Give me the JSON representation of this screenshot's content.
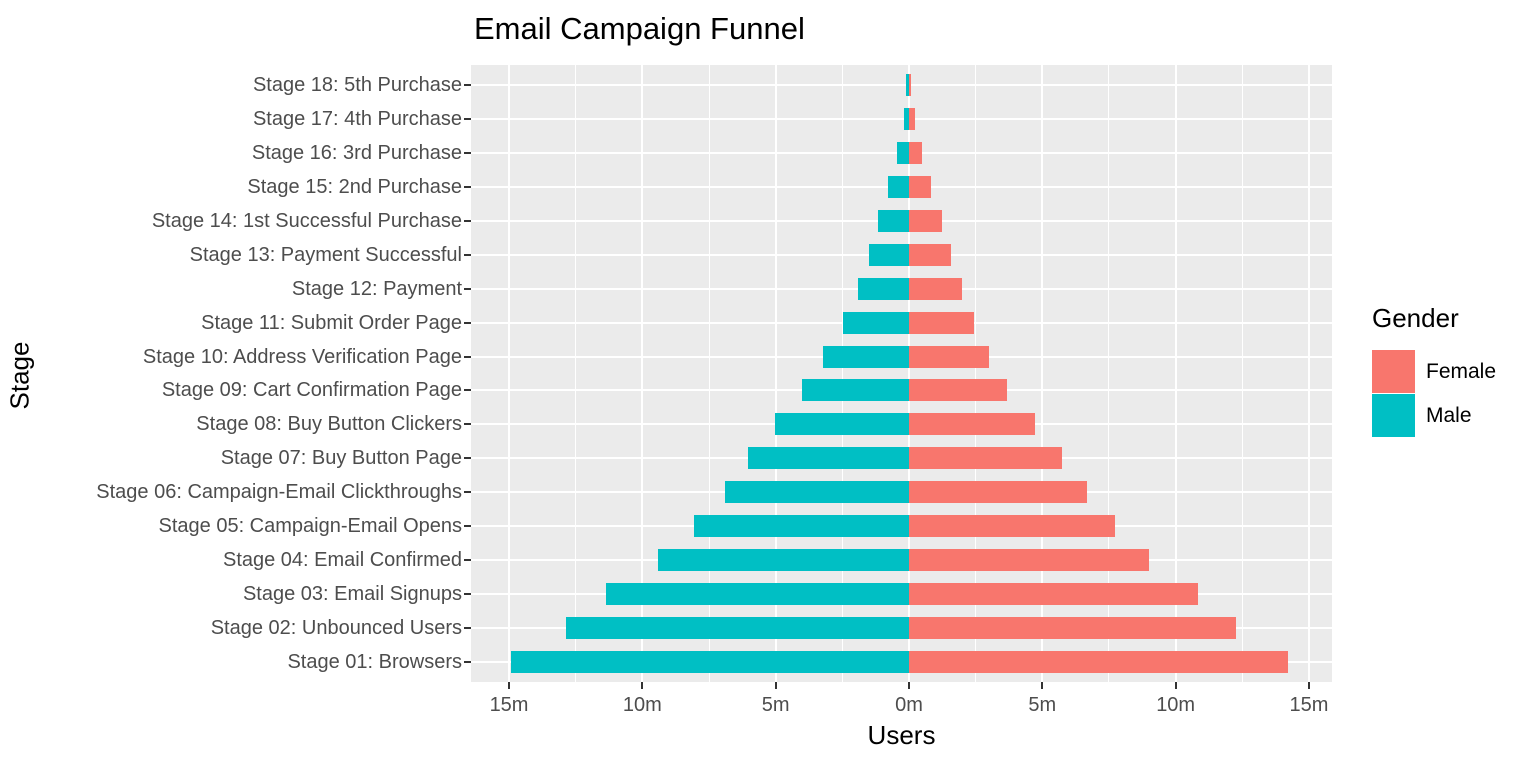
{
  "title": "Email Campaign Funnel",
  "x_axis": {
    "label": "Users",
    "ticks": [
      "15m",
      "10m",
      "5m",
      "0m",
      "5m",
      "10m",
      "15m"
    ],
    "tick_values_m": [
      -15,
      -10,
      -5,
      0,
      5,
      10,
      15
    ]
  },
  "y_axis": {
    "label": "Stage"
  },
  "legend": {
    "title": "Gender",
    "items": [
      {
        "label": "Female",
        "color": "#F8766D"
      },
      {
        "label": "Male",
        "color": "#00BFC4"
      }
    ]
  },
  "colors": {
    "female": "#F8766D",
    "male": "#00BFC4",
    "panel_background": "#EBEBEB",
    "gridline": "#FFFFFF",
    "axis_text": "#4D4D4D",
    "tick_mark": "#333333",
    "title_text": "#000000"
  },
  "chart_data": {
    "type": "bar",
    "subtype": "population-pyramid-funnel",
    "title": "Email Campaign Funnel",
    "xlabel": "Users",
    "ylabel": "Stage",
    "unit": "millions of users",
    "orientation": "horizontal, diverging from zero; Male plotted left (negative), Female plotted right (positive)",
    "axis_range_m": [
      -16.4,
      15.9
    ],
    "grid": "white major/minor gridlines on gray panel",
    "legend_position": "right",
    "categories": [
      "Stage 18: 5th Purchase",
      "Stage 17: 4th Purchase",
      "Stage 16: 3rd Purchase",
      "Stage 15: 2nd Purchase",
      "Stage 14: 1st Successful Purchase",
      "Stage 13: Payment Successful",
      "Stage 12: Payment",
      "Stage 11: Submit Order Page",
      "Stage 10: Address Verification Page",
      "Stage 09: Cart Confirmation Page",
      "Stage 08: Buy Button Clickers",
      "Stage 07: Buy Button Page",
      "Stage 06: Campaign-Email Clickthroughs",
      "Stage 05: Campaign-Email Opens",
      "Stage 04: Email Confirmed",
      "Stage 03: Email Signups",
      "Stage 02: Unbounced Users",
      "Stage 01: Browsers"
    ],
    "series": [
      {
        "name": "Male",
        "color": "#00BFC4",
        "side": "left",
        "values_m": [
          0.1,
          0.19,
          0.44,
          0.78,
          1.15,
          1.49,
          1.9,
          2.46,
          3.21,
          4.0,
          5.02,
          6.03,
          6.9,
          8.06,
          9.4,
          11.36,
          12.86,
          14.93
        ]
      },
      {
        "name": "Female",
        "color": "#F8766D",
        "side": "right",
        "values_m": [
          0.09,
          0.23,
          0.48,
          0.83,
          1.23,
          1.58,
          2.0,
          2.45,
          3.0,
          3.68,
          4.72,
          5.75,
          6.69,
          7.73,
          9.01,
          10.85,
          12.26,
          14.21
        ]
      }
    ]
  }
}
